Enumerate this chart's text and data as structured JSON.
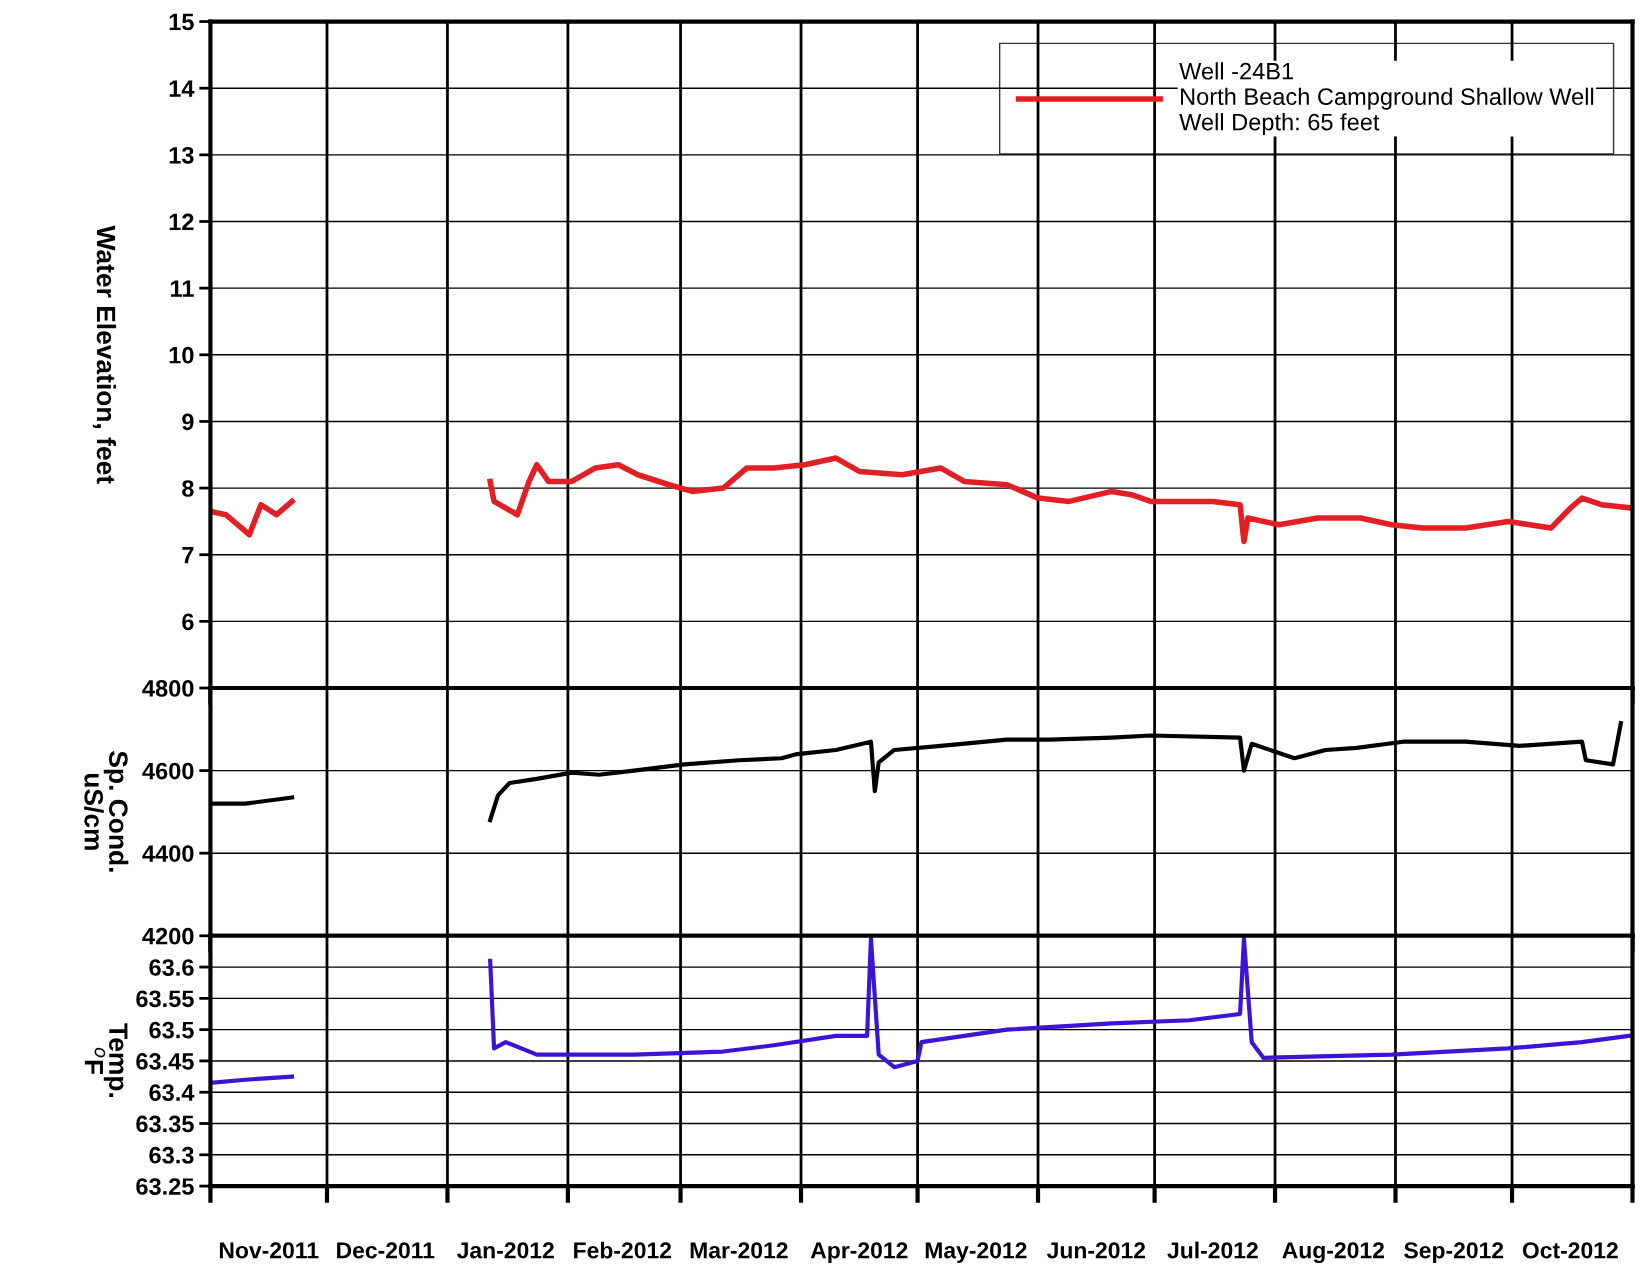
{
  "chart_data": [
    {
      "type": "line",
      "ylabel": "Water Elevation, feet",
      "ylim": [
        5,
        15
      ],
      "yticks": [
        6,
        7,
        8,
        9,
        10,
        11,
        12,
        13,
        14,
        15
      ],
      "grid": true,
      "legend": "top right",
      "tick_labels": "y",
      "line_style": "solid",
      "marker": "none",
      "xlim": [
        "2011-11-01",
        "2012-11-01"
      ],
      "series": [
        {
          "name": "Well -24B1\nNorth Beach Campground Shallow Well\nWell Depth: 65 feet",
          "color": "#e31f26",
          "x": [
            "2011-11-01",
            "2011-11-05",
            "2011-11-11",
            "2011-11-14",
            "2011-11-18",
            "2011-11-22",
            "2011-12-15",
            "2012-01-12",
            "2012-01-13",
            "2012-01-19",
            "2012-01-22",
            "2012-01-24",
            "2012-01-27",
            "2012-02-02",
            "2012-02-08",
            "2012-02-14",
            "2012-02-19",
            "2012-02-27",
            "2012-03-04",
            "2012-03-12",
            "2012-03-18",
            "2012-03-25",
            "2012-04-02",
            "2012-04-10",
            "2012-04-16",
            "2012-04-27",
            "2012-05-07",
            "2012-05-13",
            "2012-05-24",
            "2012-06-01",
            "2012-06-09",
            "2012-06-20",
            "2012-06-25",
            "2012-06-30",
            "2012-07-08",
            "2012-07-16",
            "2012-07-23",
            "2012-07-24",
            "2012-07-25",
            "2012-08-02",
            "2012-08-12",
            "2012-08-23",
            "2012-08-31",
            "2012-09-08",
            "2012-09-19",
            "2012-09-30",
            "2012-10-11",
            "2012-10-16",
            "2012-10-19",
            "2012-10-24",
            "2012-11-01"
          ],
          "values": [
            7.65,
            7.6,
            7.3,
            7.75,
            7.6,
            7.8,
            null,
            8.1,
            7.8,
            7.6,
            8.1,
            8.35,
            8.1,
            8.1,
            8.3,
            8.35,
            8.2,
            8.05,
            7.95,
            8.0,
            8.3,
            8.3,
            8.35,
            8.45,
            8.25,
            8.2,
            8.3,
            8.1,
            8.05,
            7.85,
            7.8,
            7.95,
            7.9,
            7.8,
            7.8,
            7.8,
            7.75,
            7.2,
            7.55,
            7.45,
            7.55,
            7.55,
            7.45,
            7.4,
            7.4,
            7.5,
            7.4,
            7.7,
            7.85,
            7.75,
            7.7
          ]
        }
      ]
    },
    {
      "type": "line",
      "ylabel": "Sp. Cond.\nuS/cm",
      "ylim": [
        4200,
        4800
      ],
      "yticks": [
        4200,
        4400,
        4600,
        4800
      ],
      "grid": true,
      "tick_labels": "y",
      "line_style": "solid",
      "marker": "none",
      "xlim": [
        "2011-11-01",
        "2012-11-01"
      ],
      "series": [
        {
          "color": "#000000",
          "x": [
            "2011-11-01",
            "2011-11-10",
            "2011-11-22",
            "2011-12-15",
            "2012-01-12",
            "2012-01-14",
            "2012-01-17",
            "2012-01-24",
            "2012-02-02",
            "2012-02-09",
            "2012-02-18",
            "2012-03-02",
            "2012-03-16",
            "2012-03-27",
            "2012-03-31",
            "2012-04-10",
            "2012-04-19",
            "2012-04-20",
            "2012-04-21",
            "2012-04-25",
            "2012-05-07",
            "2012-05-24",
            "2012-06-04",
            "2012-06-20",
            "2012-06-30",
            "2012-07-23",
            "2012-07-24",
            "2012-07-26",
            "2012-08-06",
            "2012-08-14",
            "2012-08-22",
            "2012-09-03",
            "2012-09-19",
            "2012-10-03",
            "2012-10-19",
            "2012-10-20",
            "2012-10-27",
            "2012-10-29"
          ],
          "values": [
            4520,
            4520,
            4535,
            null,
            4480,
            4540,
            4570,
            4580,
            4595,
            4590,
            4600,
            4615,
            4625,
            4630,
            4640,
            4650,
            4670,
            4550,
            4620,
            4650,
            4660,
            4675,
            4675,
            4680,
            4685,
            4680,
            4600,
            4665,
            4630,
            4650,
            4655,
            4670,
            4670,
            4660,
            4670,
            4625,
            4615,
            4715
          ]
        }
      ]
    },
    {
      "type": "line",
      "ylabel": "Temp.\n$^{o}$F",
      "ylim": [
        63.25,
        63.65
      ],
      "yticks": [
        63.25,
        63.3,
        63.35,
        63.4,
        63.45,
        63.5,
        63.55,
        63.6
      ],
      "grid": true,
      "line_style": "solid",
      "marker": "none",
      "xlim": [
        "2011-11-01",
        "2012-11-01"
      ],
      "xticks": [
        {
          "value": "2011-11-01",
          "label": null
        },
        {
          "value": "2011-12-01",
          "label": null
        },
        {
          "value": "2012-01-01",
          "label": null
        },
        {
          "value": "2012-02-01",
          "label": null
        },
        {
          "value": "2012-03-01",
          "label": null
        },
        {
          "value": "2012-04-01",
          "label": null
        },
        {
          "value": "2012-05-01",
          "label": null
        },
        {
          "value": "2012-06-01",
          "label": null
        },
        {
          "value": "2012-07-01",
          "label": null
        },
        {
          "value": "2012-08-01",
          "label": null
        },
        {
          "value": "2012-09-01",
          "label": null
        },
        {
          "value": "2012-10-01",
          "label": null
        },
        {
          "value": "2012-11-01",
          "label": null
        },
        {
          "value": "2011-11-16",
          "label": "Nov-2011"
        },
        {
          "value": "2011-12-16",
          "label": "Dec-2011"
        },
        {
          "value": "2012-01-16",
          "label": "Jan-2012"
        },
        {
          "value": "2012-02-15",
          "label": "Feb-2012"
        },
        {
          "value": "2012-03-16",
          "label": "Mar-2012"
        },
        {
          "value": "2012-04-16",
          "label": "Apr-2012"
        },
        {
          "value": "2012-05-16",
          "label": "May-2012"
        },
        {
          "value": "2012-06-16",
          "label": "Jun-2012"
        },
        {
          "value": "2012-07-16",
          "label": "Jul-2012"
        },
        {
          "value": "2012-08-16",
          "label": "Aug-2012"
        },
        {
          "value": "2012-09-16",
          "label": "Sep-2012"
        },
        {
          "value": "2012-10-16",
          "label": "Oct-2012"
        }
      ],
      "series": [
        {
          "color": "#3b14d6",
          "x": [
            "2011-11-01",
            "2011-11-10",
            "2011-11-22",
            "2011-12-15",
            "2012-01-12",
            "2012-01-13",
            "2012-01-16",
            "2012-01-24",
            "2012-02-18",
            "2012-03-12",
            "2012-03-25",
            "2012-04-10",
            "2012-04-18",
            "2012-04-19",
            "2012-04-21",
            "2012-04-25",
            "2012-05-01",
            "2012-05-02",
            "2012-05-24",
            "2012-06-20",
            "2012-07-10",
            "2012-07-23",
            "2012-07-24",
            "2012-07-26",
            "2012-07-29",
            "2012-08-31",
            "2012-09-30",
            "2012-10-19",
            "2012-10-31"
          ],
          "values": [
            63.415,
            63.42,
            63.425,
            null,
            63.61,
            63.47,
            63.48,
            63.46,
            63.46,
            63.465,
            63.475,
            63.49,
            63.49,
            63.645,
            63.46,
            63.44,
            63.45,
            63.48,
            63.5,
            63.51,
            63.515,
            63.525,
            63.645,
            63.48,
            63.455,
            63.46,
            63.47,
            63.48,
            63.49
          ]
        }
      ]
    }
  ]
}
